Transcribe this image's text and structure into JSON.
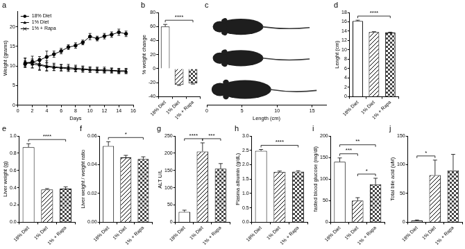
{
  "chart_data": [
    {
      "panel": "a",
      "type": "line",
      "x_label": "Days",
      "y_label": "Weight (grams)",
      "x": [
        1,
        2,
        3,
        4,
        5,
        6,
        7,
        8,
        9,
        10,
        11,
        12,
        13,
        14,
        15
      ],
      "xlim": [
        0,
        16
      ],
      "xticks": [
        0,
        2,
        4,
        6,
        8,
        10,
        12,
        14,
        16
      ],
      "ylim": [
        0,
        24
      ],
      "yticks": [
        0,
        5,
        10,
        15,
        20
      ],
      "grid": false,
      "legend": "upper left",
      "series": [
        {
          "name": "18% Diet",
          "color": "#000000",
          "marker": "circle",
          "line_style": "solid",
          "values": [
            10.5,
            11.0,
            11.5,
            12.3,
            13.0,
            13.8,
            14.8,
            15.2,
            16.0,
            17.5,
            17.0,
            17.6,
            18.0,
            18.6,
            18.2
          ],
          "errors": [
            0.8,
            0.8,
            0.9,
            1.5,
            0.8,
            0.7,
            0.6,
            0.7,
            0.6,
            0.8,
            0.6,
            0.7,
            0.7,
            0.8,
            0.7
          ]
        },
        {
          "name": "1% Diet",
          "color": "#000000",
          "marker": "triangle",
          "line_style": "solid",
          "values": [
            11.0,
            10.5,
            10.2,
            9.8,
            9.6,
            9.5,
            9.3,
            9.2,
            9.1,
            9.0,
            8.9,
            8.8,
            8.8,
            8.6,
            8.6
          ],
          "errors": [
            1.0,
            1.0,
            1.2,
            1.0,
            0.8,
            0.8,
            0.7,
            0.7,
            0.7,
            0.6,
            0.6,
            0.6,
            0.6,
            0.6,
            0.6
          ]
        },
        {
          "name": "1% + Rapa",
          "color": "#000000",
          "marker": "cross",
          "line_style": "solid",
          "values": [
            10.8,
            11.0,
            10.4,
            10.0,
            9.8,
            9.6,
            9.6,
            9.4,
            9.3,
            9.1,
            9.0,
            9.0,
            8.9,
            8.8,
            8.8
          ],
          "errors": [
            1.2,
            1.5,
            1.5,
            1.3,
            0.9,
            0.8,
            0.8,
            0.8,
            0.7,
            0.7,
            0.7,
            0.7,
            0.6,
            0.6,
            0.6
          ]
        }
      ]
    },
    {
      "panel": "b",
      "type": "bar",
      "y_label": "% weight change",
      "categories": [
        "18% Diet",
        "1% Diet",
        "1% + Rapa"
      ],
      "values": [
        60,
        -23,
        -21
      ],
      "errors": [
        3,
        1,
        1
      ],
      "colors": [
        "#ffffff",
        "#ffffff",
        "#ffffff"
      ],
      "ylim": [
        -40,
        80
      ],
      "yticks": [
        -40,
        -20,
        0,
        20,
        40,
        60,
        80
      ],
      "grid": false,
      "significance": [
        {
          "from": "18% Diet",
          "to": "1% + Rapa",
          "label": "****"
        }
      ]
    },
    {
      "panel": "c",
      "type": "image",
      "x_label": "Length (cm)",
      "xlim": [
        0,
        17
      ],
      "xticks": [
        0,
        5,
        10,
        15
      ],
      "tick_labels": "x"
    },
    {
      "panel": "d",
      "type": "bar",
      "y_label": "Lenght (cm)",
      "categories": [
        "18% Diet",
        "1% Diet",
        "1% + Rapa"
      ],
      "values": [
        16.2,
        13.8,
        13.7
      ],
      "errors": [
        0.15,
        0.1,
        0.1
      ],
      "colors": [
        "#ffffff",
        "#ffffff",
        "#ffffff"
      ],
      "ylim": [
        0,
        18
      ],
      "yticks": [
        0,
        2,
        4,
        6,
        8,
        10,
        12,
        14,
        16,
        18
      ],
      "grid": false,
      "significance": [
        {
          "from": "18% Diet",
          "to": "1% + Rapa",
          "label": "****"
        }
      ]
    },
    {
      "panel": "e",
      "type": "bar",
      "y_label": "Liver weight (g)",
      "categories": [
        "18% Diet",
        "1% Diet",
        "1% + Rapa"
      ],
      "values": [
        0.87,
        0.38,
        0.39
      ],
      "errors": [
        0.04,
        0.01,
        0.02
      ],
      "colors": [
        "#ffffff",
        "#ffffff",
        "#ffffff"
      ],
      "ylim": [
        0,
        1
      ],
      "yticks": [
        {
          "value": 0,
          "label": "0.0"
        },
        0.2,
        0.4,
        0.6,
        0.8,
        {
          "value": 1,
          "label": "1.0"
        }
      ],
      "grid": false,
      "significance": [
        {
          "from": "18% Diet",
          "to": "1% + Rapa",
          "label": "****"
        }
      ]
    },
    {
      "panel": "f",
      "type": "bar",
      "y_label": "Liver weight / weight ratio",
      "categories": [
        "18% Diet",
        "1% Diet",
        "1% + Rapa"
      ],
      "values": [
        0.053,
        0.045,
        0.044
      ],
      "errors": [
        0.003,
        0.0015,
        0.0015
      ],
      "colors": [
        "#ffffff",
        "#ffffff",
        "#ffffff"
      ],
      "ylim": [
        0,
        0.06
      ],
      "yticks": [
        {
          "value": 0,
          "label": "0.00"
        },
        0.02,
        0.04,
        0.06
      ],
      "grid": false,
      "significance": [
        {
          "from": "18% Diet",
          "to": "1% + Rapa",
          "label": "*"
        }
      ]
    },
    {
      "panel": "g",
      "type": "bar",
      "y_label": "ALT U/L",
      "categories": [
        "18% Diet",
        "1% Diet",
        "1% + Rapa"
      ],
      "values": [
        30,
        205,
        155
      ],
      "errors": [
        5,
        25,
        15
      ],
      "colors": [
        "#ffffff",
        "#ffffff",
        "#ffffff"
      ],
      "ylim": [
        0,
        250
      ],
      "yticks": [
        0,
        50,
        100,
        150,
        200,
        250
      ],
      "grid": false,
      "significance": [
        {
          "from": "18% Diet",
          "to": "1% Diet",
          "label": "****"
        },
        {
          "from": "1% Diet",
          "to": "1% + Rapa",
          "label": "***"
        }
      ]
    },
    {
      "panel": "h",
      "type": "bar",
      "y_label": "Plasma albumin (g/dL)",
      "categories": [
        "18% Diet",
        "1% Diet",
        "1% + Rapa"
      ],
      "values": [
        2.48,
        1.75,
        1.76
      ],
      "errors": [
        0.05,
        0.03,
        0.03
      ],
      "colors": [
        "#ffffff",
        "#ffffff",
        "#ffffff"
      ],
      "ylim": [
        0,
        3
      ],
      "yticks": [
        {
          "value": 0,
          "label": "0.0"
        },
        0.5,
        {
          "value": 1,
          "label": "1.0"
        },
        1.5,
        {
          "value": 2,
          "label": "2.0"
        },
        2.5,
        {
          "value": 3,
          "label": "3.0"
        }
      ],
      "grid": false,
      "significance": [
        {
          "from": "18% Diet",
          "to": "1% + Rapa",
          "label": "****"
        }
      ]
    },
    {
      "panel": "i",
      "type": "bar",
      "y_label": "fasted blood glucose (mg/dl)",
      "categories": [
        "18% Diet",
        "1% Diet",
        "1% + Rapa"
      ],
      "values": [
        140,
        50,
        88
      ],
      "errors": [
        9,
        7,
        14
      ],
      "colors": [
        "#ffffff",
        "#ffffff",
        "#ffffff"
      ],
      "ylim": [
        0,
        200
      ],
      "yticks": [
        0,
        50,
        100,
        150,
        200
      ],
      "grid": false,
      "significance": [
        {
          "from": "18% Diet",
          "to": "1% + Rapa",
          "label": "**"
        },
        {
          "from": "18% Diet",
          "to": "1% Diet",
          "label": "***"
        },
        {
          "from": "1% Diet",
          "to": "1% + Rapa",
          "label": "*"
        }
      ]
    },
    {
      "panel": "j",
      "type": "bar",
      "y_label": "Total bile acid (uM)",
      "categories": [
        "18% Diet",
        "1% Diet",
        "1% + Rapa"
      ],
      "values": [
        3,
        82,
        90
      ],
      "errors": [
        1,
        26,
        28
      ],
      "colors": [
        "#ffffff",
        "#ffffff",
        "#ffffff"
      ],
      "ylim": [
        0,
        150
      ],
      "yticks": [
        0,
        50,
        100,
        150
      ],
      "grid": false,
      "significance": [
        {
          "from": "18% Diet",
          "to": "1% Diet",
          "label": "*"
        }
      ]
    }
  ]
}
